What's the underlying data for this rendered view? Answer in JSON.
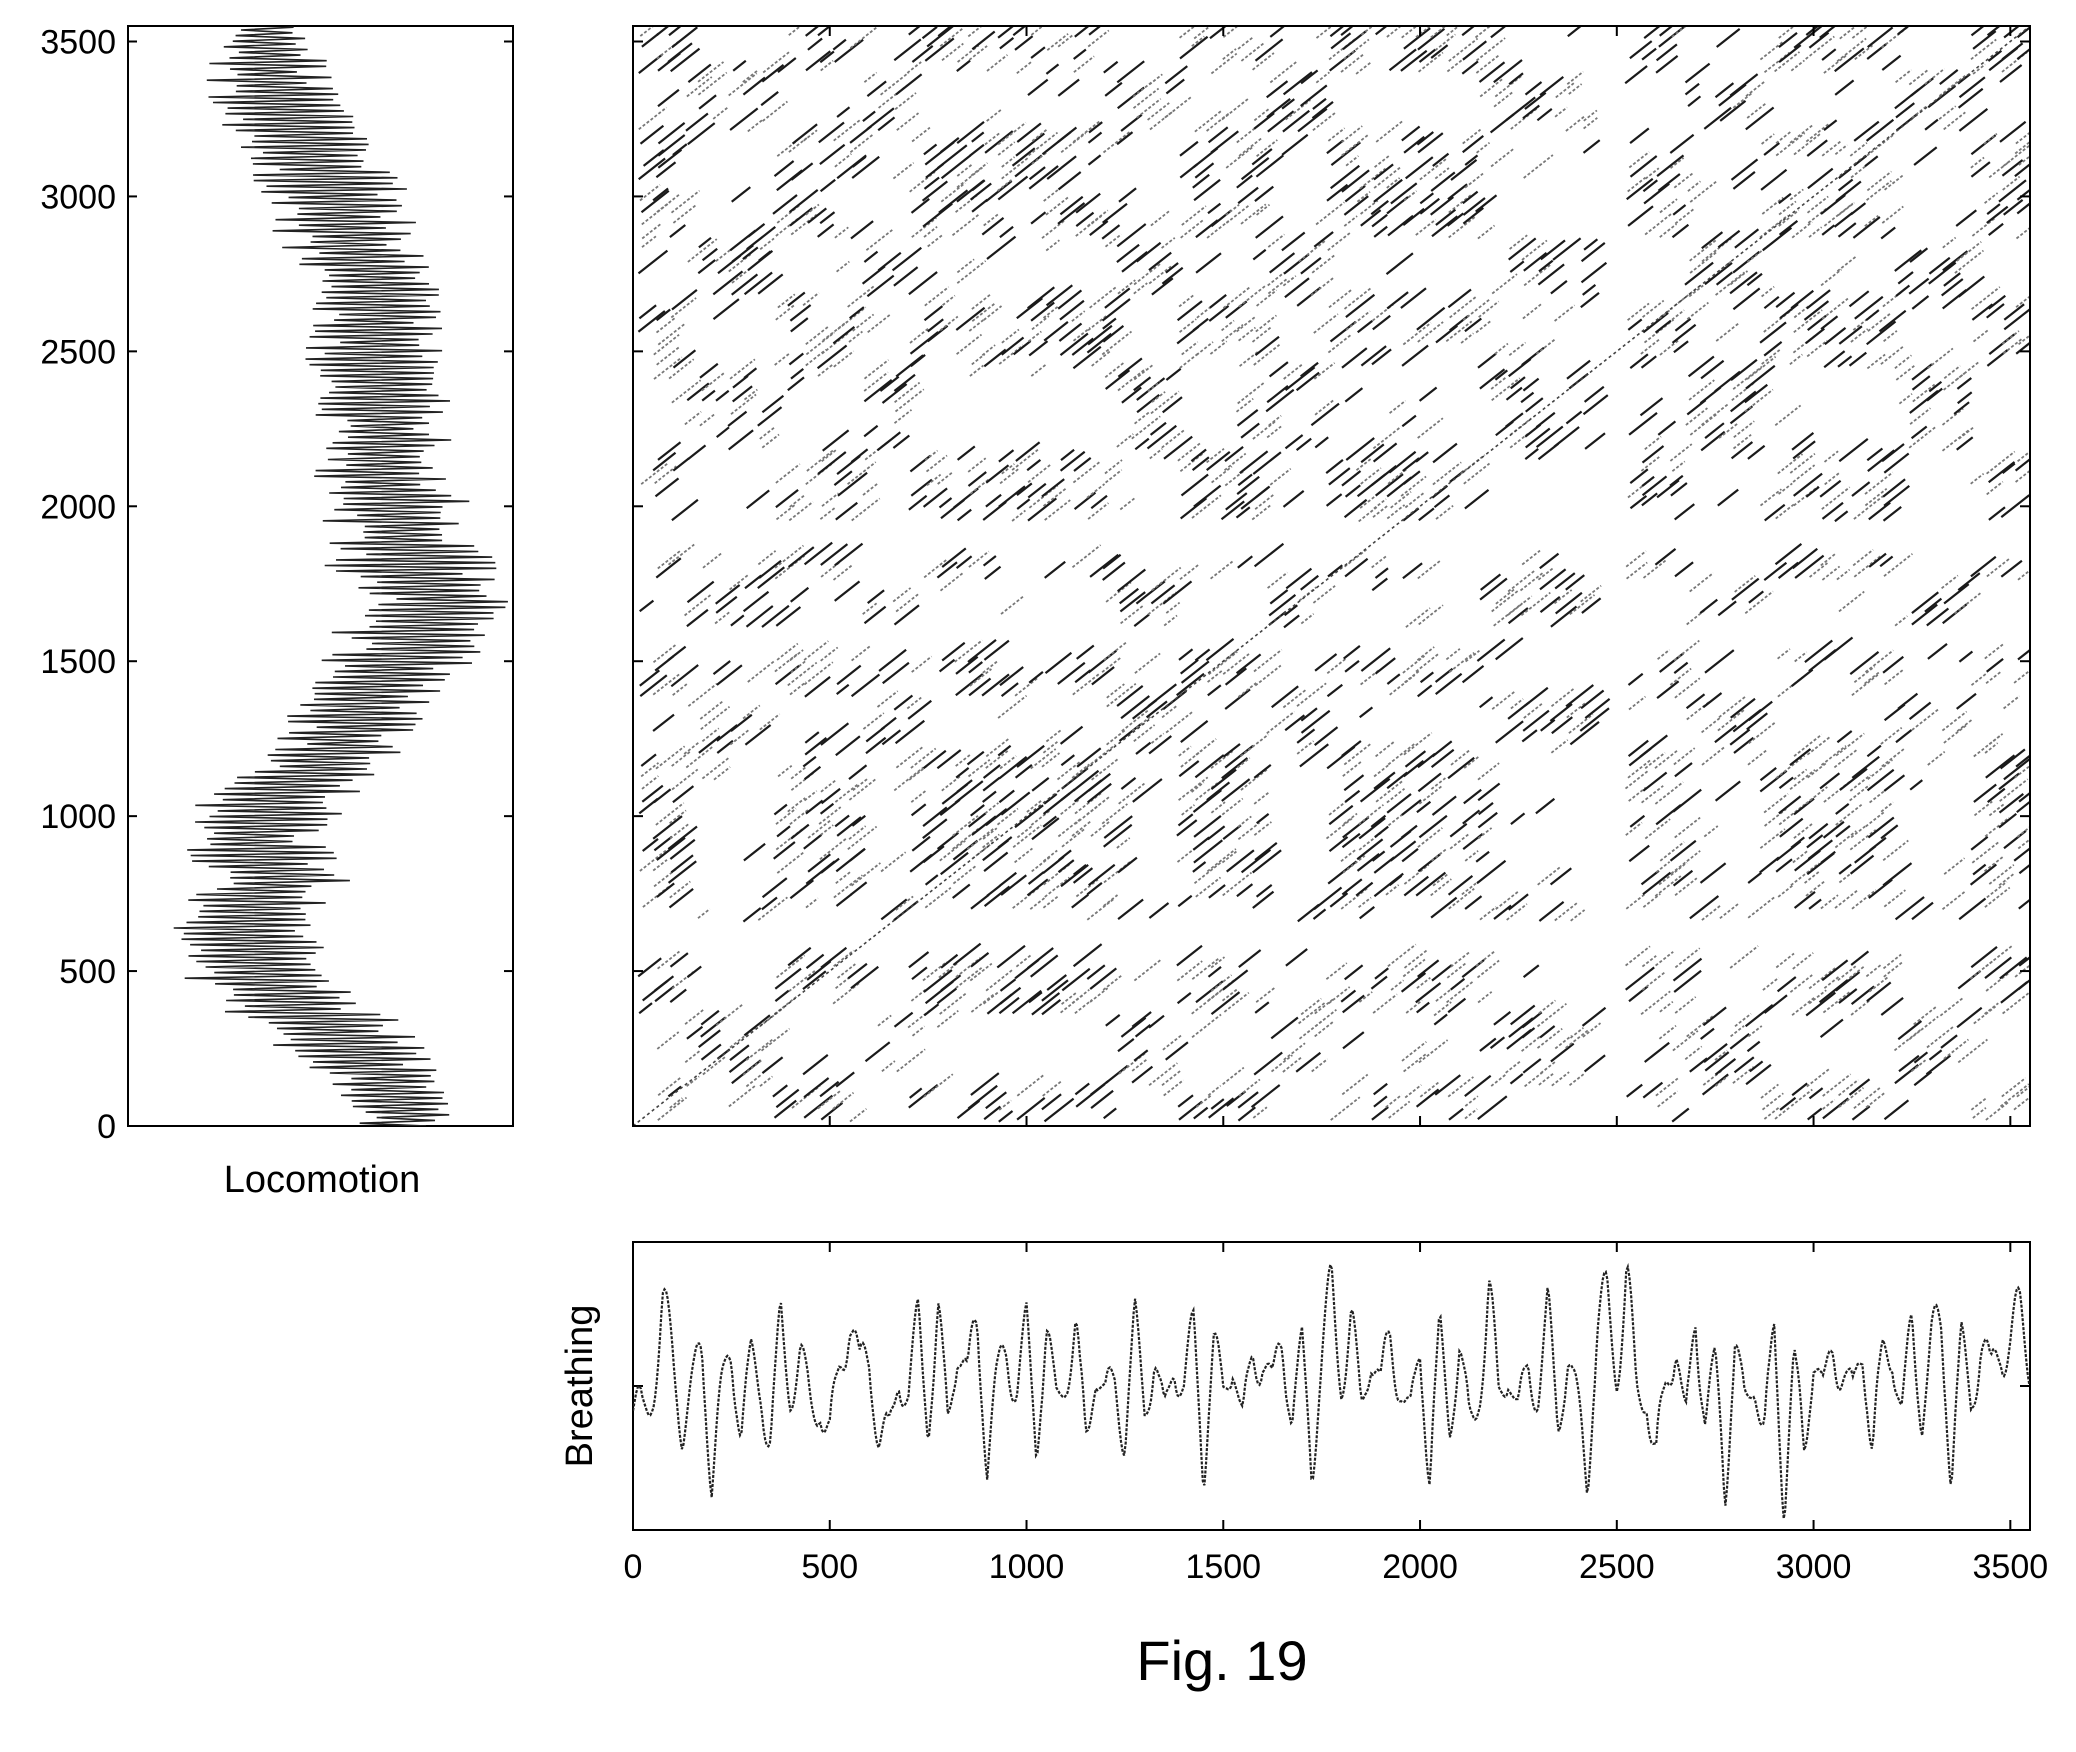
{
  "figure": {
    "caption": "Fig. 19"
  },
  "chart_data": [
    {
      "id": "locomotion",
      "type": "line",
      "orientation": "vertical",
      "title": "",
      "xlabel": "Locomotion",
      "ylabel": "",
      "ylim": [
        0,
        3550
      ],
      "yticks": [
        0,
        500,
        1000,
        1500,
        2000,
        2500,
        3000,
        3500
      ],
      "ytick_labels": [
        "0",
        "500",
        "1000",
        "1500",
        "2000",
        "2500",
        "3000",
        "3500"
      ],
      "grid": false,
      "sample_step": 50,
      "y": [
        0,
        50,
        100,
        150,
        200,
        250,
        300,
        350,
        400,
        450,
        500,
        550,
        600,
        650,
        700,
        750,
        800,
        850,
        900,
        950,
        1000,
        1050,
        1100,
        1150,
        1200,
        1250,
        1300,
        1350,
        1400,
        1450,
        1500,
        1550,
        1600,
        1650,
        1700,
        1750,
        1800,
        1850,
        1900,
        1950,
        2000,
        2050,
        2100,
        2150,
        2200,
        2250,
        2300,
        2350,
        2400,
        2450,
        2500,
        2550,
        2600,
        2650,
        2700,
        2750,
        2800,
        2850,
        2900,
        2950,
        3000,
        3050,
        3100,
        3150,
        3200,
        3250,
        3300,
        3350,
        3400,
        3450,
        3500,
        3550
      ],
      "center": [
        0.72,
        0.72,
        0.68,
        0.66,
        0.62,
        0.58,
        0.54,
        0.48,
        0.42,
        0.36,
        0.34,
        0.32,
        0.3,
        0.28,
        0.32,
        0.36,
        0.38,
        0.36,
        0.34,
        0.32,
        0.34,
        0.4,
        0.46,
        0.5,
        0.54,
        0.56,
        0.58,
        0.6,
        0.62,
        0.66,
        0.7,
        0.74,
        0.74,
        0.78,
        0.8,
        0.78,
        0.74,
        0.72,
        0.72,
        0.7,
        0.7,
        0.68,
        0.66,
        0.66,
        0.66,
        0.66,
        0.66,
        0.66,
        0.66,
        0.64,
        0.64,
        0.64,
        0.64,
        0.64,
        0.64,
        0.62,
        0.6,
        0.58,
        0.56,
        0.54,
        0.52,
        0.52,
        0.5,
        0.46,
        0.42,
        0.4,
        0.38,
        0.38,
        0.36,
        0.36,
        0.36,
        0.36
      ],
      "amplitude": [
        0.12,
        0.14,
        0.16,
        0.16,
        0.18,
        0.2,
        0.22,
        0.22,
        0.22,
        0.2,
        0.22,
        0.22,
        0.2,
        0.2,
        0.2,
        0.2,
        0.2,
        0.2,
        0.2,
        0.22,
        0.22,
        0.22,
        0.2,
        0.2,
        0.2,
        0.18,
        0.18,
        0.18,
        0.2,
        0.2,
        0.2,
        0.2,
        0.22,
        0.22,
        0.22,
        0.22,
        0.24,
        0.22,
        0.2,
        0.2,
        0.2,
        0.18,
        0.18,
        0.18,
        0.18,
        0.18,
        0.18,
        0.18,
        0.18,
        0.18,
        0.18,
        0.18,
        0.18,
        0.18,
        0.18,
        0.18,
        0.18,
        0.2,
        0.2,
        0.2,
        0.2,
        0.22,
        0.22,
        0.2,
        0.2,
        0.2,
        0.18,
        0.18,
        0.16,
        0.16,
        0.14,
        0.14
      ]
    },
    {
      "id": "recurrence",
      "type": "scatter",
      "title": "",
      "xlabel": "",
      "ylabel": "",
      "xlim": [
        0,
        3550
      ],
      "ylim": [
        0,
        3550
      ],
      "xticks": [
        500,
        1000,
        1500,
        2000,
        2500,
        3000,
        3500
      ],
      "yticks": [
        500,
        1000,
        1500,
        2000,
        2500,
        3000,
        3500
      ],
      "tick_labels_shown": false,
      "grid": false,
      "band_edges": [
        0,
        120,
        340,
        560,
        700,
        980,
        1200,
        1380,
        1600,
        1760,
        2000,
        2150,
        2420,
        2650,
        2850,
        3000,
        3200,
        3380,
        3550
      ],
      "band_labels": [
        1,
        0,
        1,
        0,
        1,
        1,
        0,
        1,
        0,
        1,
        1,
        0,
        1,
        0,
        1,
        1,
        0,
        1
      ],
      "corridors": [
        {
          "axis": "x",
          "from": 2420,
          "to": 2500
        },
        {
          "axis": "y",
          "from": 540,
          "to": 640
        },
        {
          "axis": "y",
          "from": 1520,
          "to": 1600
        },
        {
          "axis": "y",
          "from": 1830,
          "to": 1940
        }
      ],
      "diagonal_stroke": 55,
      "diagonal_spacing": 38
    },
    {
      "id": "breathing",
      "type": "line",
      "title": "",
      "xlabel": "",
      "ylabel": "Breathing",
      "xlim": [
        0,
        3550
      ],
      "xticks": [
        0,
        500,
        1000,
        1500,
        2000,
        2500,
        3000,
        3500
      ],
      "xtick_labels": [
        "0",
        "500",
        "1000",
        "1500",
        "2000",
        "2500",
        "3000",
        "3500"
      ],
      "ylim": [
        -1,
        1
      ],
      "yticks": [
        0
      ],
      "ytick_labels_shown": false,
      "grid": false,
      "sample_step": 25,
      "x": [
        0,
        25,
        50,
        75,
        100,
        125,
        150,
        175,
        200,
        225,
        250,
        275,
        300,
        325,
        350,
        375,
        400,
        425,
        450,
        475,
        500,
        525,
        550,
        575,
        600,
        625,
        650,
        675,
        700,
        725,
        750,
        775,
        800,
        825,
        850,
        875,
        900,
        925,
        950,
        975,
        1000,
        1025,
        1050,
        1075,
        1100,
        1125,
        1150,
        1175,
        1200,
        1225,
        1250,
        1275,
        1300,
        1325,
        1350,
        1375,
        1400,
        1425,
        1450,
        1475,
        1500,
        1525,
        1550,
        1575,
        1600,
        1625,
        1650,
        1675,
        1700,
        1725,
        1750,
        1775,
        1800,
        1825,
        1850,
        1875,
        1900,
        1925,
        1950,
        1975,
        2000,
        2025,
        2050,
        2075,
        2100,
        2125,
        2150,
        2175,
        2200,
        2225,
        2250,
        2275,
        2300,
        2325,
        2350,
        2375,
        2400,
        2425,
        2450,
        2475,
        2500,
        2525,
        2550,
        2575,
        2600,
        2625,
        2650,
        2675,
        2700,
        2725,
        2750,
        2775,
        2800,
        2825,
        2850,
        2875,
        2900,
        2925,
        2950,
        2975,
        3000,
        3025,
        3050,
        3075,
        3100,
        3125,
        3150,
        3175,
        3200,
        3225,
        3250,
        3275,
        3300,
        3325,
        3350,
        3375,
        3400,
        3425,
        3450,
        3475,
        3500,
        3525,
        3550
      ],
      "y": [
        -0.25,
        -0.45,
        0.05,
        0.72,
        0.25,
        -0.3,
        -0.1,
        0.35,
        -0.75,
        -0.2,
        0.4,
        -0.35,
        0.15,
        0.05,
        -0.55,
        0.55,
        0.05,
        0.25,
        -0.25,
        -0.05,
        -0.7,
        0.2,
        0.9,
        0.05,
        0.35,
        -0.45,
        -0.8,
        0.25,
        -0.1,
        0.55,
        -0.25,
        0.65,
        -0.45,
        0.65,
        0.0,
        0.6,
        -0.6,
        -0.05,
        0.45,
        0.0,
        0.45,
        -0.45,
        0.55,
        -0.3,
        0.25,
        0.5,
        -0.65,
        0.35,
        -0.25,
        0.05,
        -0.4,
        0.5,
        -0.15,
        0.35,
        -0.55,
        0.4,
        0.0,
        0.45,
        -0.65,
        0.35,
        -0.15,
        0.5,
        -0.55,
        0.3,
        0.45,
        -0.15,
        0.55,
        -0.25,
        0.25,
        -0.65,
        0.25,
        0.85,
        0.2,
        0.6,
        -0.3,
        0.55,
        -0.1,
        0.5,
        0.1,
        -0.55,
        0.45,
        -0.8,
        0.4,
        -0.25,
        0.35,
        -0.55,
        0.05,
        0.85,
        -0.15,
        0.35,
        -0.45,
        0.2,
        0.0,
        0.6,
        -0.3,
        0.35,
        -0.35,
        -0.75,
        0.5,
        0.75,
        0.3,
        1.0,
        -0.1,
        0.05,
        -1.0,
        0.05,
        0.65,
        -0.65,
        0.8,
        -0.25,
        0.1,
        -0.85,
        0.4,
        -0.35,
        0.25,
        -0.55,
        0.45,
        -0.95,
        0.15,
        -0.65,
        0.45,
        -0.25,
        0.5,
        0.2,
        -0.25,
        0.55,
        -0.65,
        0.2,
        0.55,
        -0.35,
        0.55,
        -0.2,
        0.35,
        0.55,
        -0.7,
        0.3,
        -0.1,
        0.5,
        0.0,
        0.55,
        0.45,
        0.6,
        0.35
      ],
      "harmonic": {
        "amplitude": 0.4,
        "period": 70
      }
    }
  ]
}
